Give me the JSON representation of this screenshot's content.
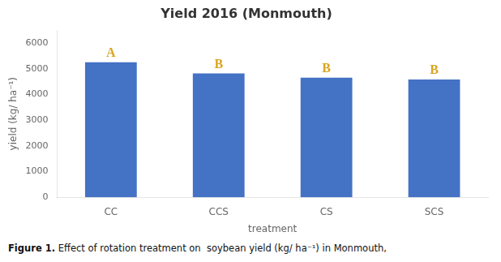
{
  "chart_data": {
    "type": "bar",
    "title": "Yield 2016 (Monmouth)",
    "xlabel": "treatment",
    "ylabel": "yield (kg/ ha⁻¹)",
    "categories": [
      "CC",
      "CCS",
      "CS",
      "SCS"
    ],
    "values": [
      5250,
      4820,
      4650,
      4580
    ],
    "color": "#4472C4",
    "ylim": [
      0,
      6500
    ],
    "yticks": [
      0,
      1000,
      2000,
      3000,
      4000,
      5000,
      6000
    ],
    "grid": false,
    "annotations": [
      {
        "category": "CC",
        "text": "A",
        "color": "#DAA520"
      },
      {
        "category": "CCS",
        "text": "B",
        "color": "#DAA520"
      },
      {
        "category": "CS",
        "text": "B",
        "color": "#DAA520"
      },
      {
        "category": "SCS",
        "text": "B",
        "color": "#DAA520"
      }
    ],
    "caption": [
      "Figure 1.",
      "Effect of rotation treatment on  soybean yield (kg/ ha⁻¹) in Monmouth,"
    ]
  }
}
